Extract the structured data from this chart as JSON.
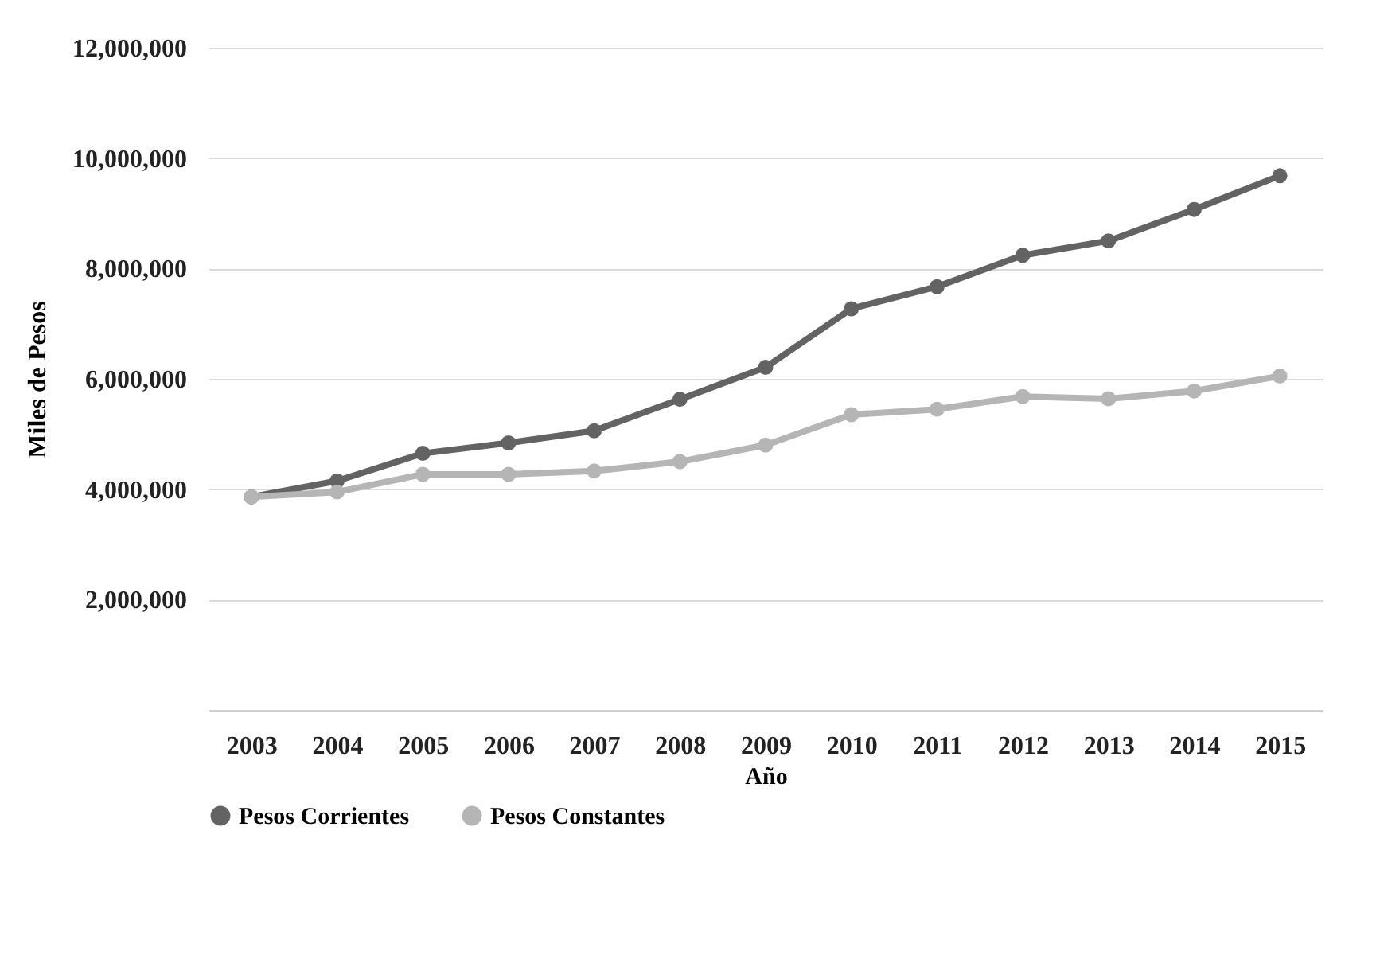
{
  "chart_data": {
    "type": "line",
    "xlabel": "Año",
    "ylabel": "Miles de Pesos",
    "categories": [
      "2003",
      "2004",
      "2005",
      "2006",
      "2007",
      "2008",
      "2009",
      "2010",
      "2011",
      "2012",
      "2013",
      "2014",
      "2015"
    ],
    "series": [
      {
        "name": "Pesos Corrientes",
        "color": "#636363",
        "values": [
          3860000,
          4150000,
          4650000,
          4840000,
          5060000,
          5630000,
          6210000,
          7270000,
          7670000,
          8240000,
          8500000,
          9070000,
          9680000
        ]
      },
      {
        "name": "Pesos Constantes",
        "color": "#b5b5b5",
        "values": [
          3860000,
          3950000,
          4270000,
          4270000,
          4330000,
          4500000,
          4800000,
          5350000,
          5450000,
          5680000,
          5640000,
          5780000,
          6050000
        ]
      }
    ],
    "ylim": [
      0,
      12000000
    ],
    "yticks": [
      {
        "value": 2000000,
        "label": "2,000,000"
      },
      {
        "value": 4000000,
        "label": "4,000,000"
      },
      {
        "value": 6000000,
        "label": "6,000,000"
      },
      {
        "value": 8000000,
        "label": "8,000,000"
      },
      {
        "value": 10000000,
        "label": "10,000,000"
      },
      {
        "value": 12000000,
        "label": "12,000,000"
      }
    ],
    "grid": "y",
    "legend": "bottom",
    "marker": "circle",
    "line_style": "solid"
  }
}
